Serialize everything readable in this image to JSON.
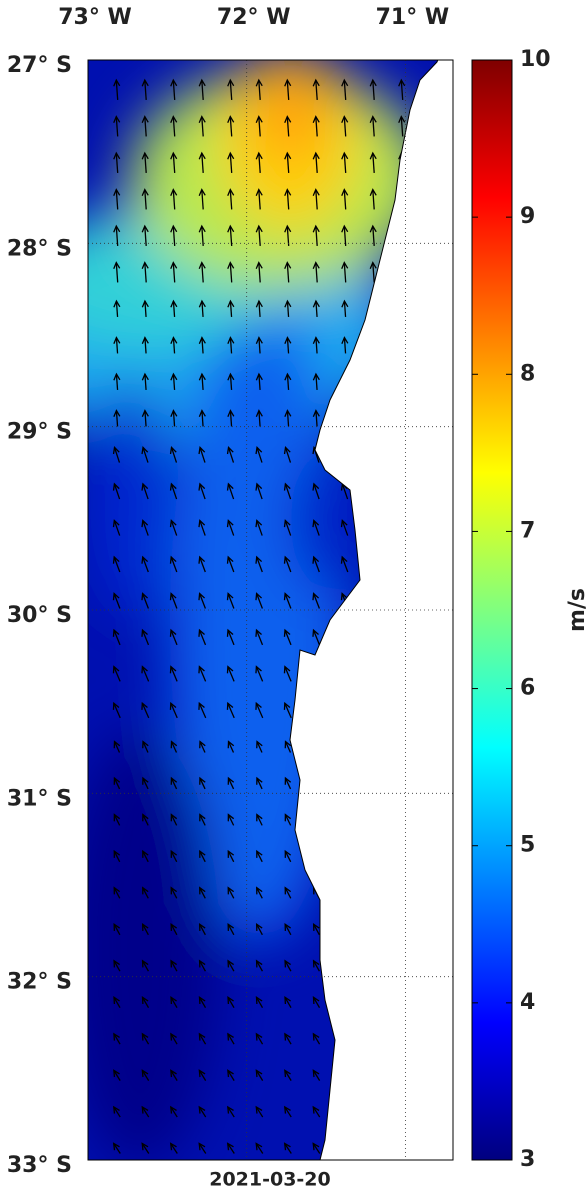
{
  "map": {
    "xlim": [
      -73.0,
      -70.7
    ],
    "ylim": [
      -33,
      -27
    ],
    "xticks": [
      {
        "value": -73,
        "label": "73° W"
      },
      {
        "value": -72,
        "label": "72° W"
      },
      {
        "value": -71,
        "label": "71° W"
      }
    ],
    "yticks": [
      {
        "value": -27,
        "label": "27° S"
      },
      {
        "value": -28,
        "label": "28° S"
      },
      {
        "value": -29,
        "label": "29° S"
      },
      {
        "value": -30,
        "label": "30° S"
      },
      {
        "value": -31,
        "label": "31° S"
      },
      {
        "value": -32,
        "label": "32° S"
      },
      {
        "value": -33,
        "label": "33° S"
      }
    ],
    "date": "2021-03-20"
  },
  "colorbar": {
    "label": "m/s",
    "lim": [
      3,
      10
    ],
    "ticks": [
      3,
      4,
      5,
      6,
      7,
      8,
      9,
      10
    ]
  }
}
